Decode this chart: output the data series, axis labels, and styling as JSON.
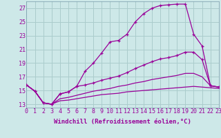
{
  "background_color": "#cde8e8",
  "grid_color": "#aacccc",
  "line_color": "#990099",
  "xlabel": "Windchill (Refroidissement éolien,°C)",
  "xlabel_fontsize": 6.5,
  "yticks": [
    13,
    15,
    17,
    19,
    21,
    23,
    25,
    27
  ],
  "xticks": [
    0,
    1,
    2,
    3,
    4,
    5,
    6,
    7,
    8,
    9,
    10,
    11,
    12,
    13,
    14,
    15,
    16,
    17,
    18,
    19,
    20,
    21,
    22,
    23
  ],
  "xlim": [
    0,
    23
  ],
  "ylim": [
    12.5,
    28.0
  ],
  "series1_y": [
    15.8,
    14.9,
    13.2,
    13.0,
    14.5,
    14.8,
    15.6,
    17.8,
    19.0,
    20.5,
    22.1,
    22.3,
    23.2,
    25.0,
    26.2,
    27.0,
    27.4,
    27.5,
    27.6,
    27.6,
    23.2,
    21.5,
    15.7,
    15.5
  ],
  "series2_y": [
    15.8,
    14.9,
    13.2,
    13.0,
    14.5,
    14.8,
    15.6,
    15.8,
    16.1,
    16.5,
    16.8,
    17.1,
    17.6,
    18.2,
    18.7,
    19.2,
    19.6,
    19.8,
    20.1,
    20.6,
    20.6,
    19.5,
    15.7,
    15.5
  ],
  "series3_y": [
    15.8,
    14.9,
    13.2,
    13.0,
    13.8,
    14.0,
    14.3,
    14.6,
    14.9,
    15.1,
    15.3,
    15.6,
    15.8,
    16.1,
    16.3,
    16.6,
    16.8,
    17.0,
    17.2,
    17.5,
    17.5,
    17.0,
    15.7,
    15.5
  ],
  "series4_y": [
    15.8,
    14.9,
    13.2,
    13.0,
    13.5,
    13.6,
    13.8,
    14.0,
    14.2,
    14.4,
    14.5,
    14.6,
    14.8,
    14.9,
    15.0,
    15.1,
    15.2,
    15.3,
    15.4,
    15.5,
    15.6,
    15.5,
    15.4,
    15.3
  ],
  "tick_fontsize": 6.0
}
